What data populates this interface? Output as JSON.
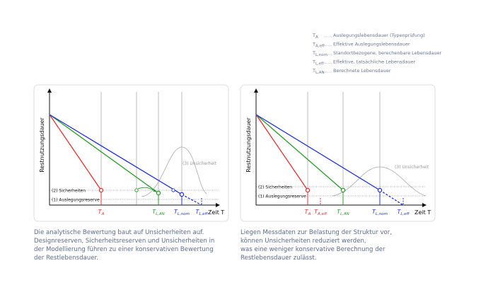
{
  "legend": [
    {
      "symbol": "T",
      "subscript": "A",
      "description": "Auslegungslebensdauer (Typenprüfung)"
    },
    {
      "symbol": "T",
      "subscript": "A,eff",
      "description": "Effektive Auslegungslebensdauer"
    },
    {
      "symbol": "T",
      "subscript": "L,nom",
      "description": "Standortbezogene, berechenbare Lebensdauer"
    },
    {
      "symbol": "T",
      "subscript": "L,eff",
      "description": "Effektive, tatsächliche Lebensdauer"
    },
    {
      "symbol": "T",
      "subscript": "L,AN",
      "description": "Berechnete Lebensdauer"
    }
  ],
  "panels": [
    {
      "y_axis_label": "Restnutzungsdauer",
      "x_axis_label": "Zeit T",
      "annotations": [
        "(3) Unsicherheit",
        "(2) Sicherheiten",
        "(1) Auslegungsreserve"
      ],
      "markers": [
        {
          "symbol": "T",
          "subscript": "A"
        },
        {
          "symbol": "T",
          "subscript": "L,AN"
        },
        {
          "symbol": "T",
          "subscript": "L,nom"
        },
        {
          "symbol": "T",
          "subscript": "L,eff"
        }
      ],
      "caption": [
        "Die analytische Bewertung baut auf Unsicherheiten auf.",
        "Designreserven, Sicherheitsreserven und Unsicherheiten in",
        "der Modellierung führen zu einer konservativen Bewertung",
        "der Restlebensdauer."
      ]
    },
    {
      "y_axis_label": "Restnutzungsdauer",
      "x_axis_label": "Zeit T",
      "annotations": [
        "(3) Unsicherheit",
        "(2) Sicherheiten",
        "(1) Auslegungsreserve"
      ],
      "markers": [
        {
          "symbol": "T",
          "subscript": "A"
        },
        {
          "symbol": "T",
          "subscript": "A,eff"
        },
        {
          "symbol": "T",
          "subscript": "L,AN"
        },
        {
          "symbol": "T",
          "subscript": "L,nom"
        },
        {
          "symbol": "T",
          "subscript": "L,eff"
        }
      ],
      "caption": [
        "Liegen Messdaten zur Belastung der Struktur vor,",
        "können Unsicherheiten reduziert werden,",
        "was eine weniger konservative Berechnung der",
        "Restlebensdauer zulässt."
      ]
    }
  ]
}
